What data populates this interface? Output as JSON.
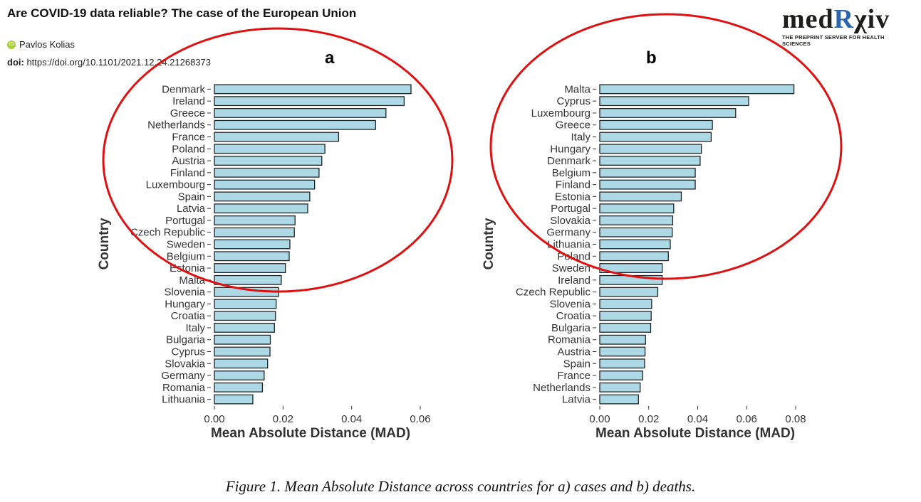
{
  "header": {
    "title": "Are COVID-19 data reliable? The case of the European Union",
    "author": "Pavlos Kolias",
    "doi_label": "doi:",
    "doi_url": "https://doi.org/10.1101/2021.12.24.21268373"
  },
  "logo": {
    "text_a": "med",
    "text_r": "R",
    "text_b": "χiv",
    "tagline": "THE PREPRINT SERVER FOR HEALTH SCIENCES"
  },
  "caption": "Figure 1. Mean Absolute Distance across countries for a) cases and b) deaths.",
  "colors": {
    "bar_fill": "#add8e6",
    "bar_stroke": "#222222",
    "ellipse": "#e01010"
  },
  "chart_data": [
    {
      "type": "bar",
      "orientation": "horizontal",
      "panel_label": "a",
      "xlabel": "Mean Absolute Distance (MAD)",
      "ylabel": "Country",
      "xlim": [
        0,
        0.06
      ],
      "xticks": [
        "0.00",
        "0.02",
        "0.04",
        "0.06"
      ],
      "categories": [
        "Denmark",
        "Ireland",
        "Greece",
        "Netherlands",
        "France",
        "Poland",
        "Austria",
        "Finland",
        "Luxembourg",
        "Spain",
        "Latvia",
        "Portugal",
        "Czech Republic",
        "Sweden",
        "Belgium",
        "Estonia",
        "Malta",
        "Slovenia",
        "Hungary",
        "Croatia",
        "Italy",
        "Bulgaria",
        "Cyprus",
        "Slovakia",
        "Germany",
        "Romania",
        "Lithuania"
      ],
      "values": [
        0.0573,
        0.0553,
        0.05,
        0.047,
        0.0362,
        0.0322,
        0.0313,
        0.0305,
        0.0292,
        0.0278,
        0.0272,
        0.0235,
        0.0233,
        0.022,
        0.0218,
        0.0207,
        0.0195,
        0.0187,
        0.018,
        0.0178,
        0.0175,
        0.0163,
        0.0162,
        0.0155,
        0.0145,
        0.014,
        0.0112
      ]
    },
    {
      "type": "bar",
      "orientation": "horizontal",
      "panel_label": "b",
      "xlabel": "Mean Absolute Distance (MAD)",
      "ylabel": "Country",
      "xlim": [
        0,
        0.08
      ],
      "xticks": [
        "0.00",
        "0.02",
        "0.04",
        "0.06",
        "0.08"
      ],
      "categories": [
        "Malta",
        "Cyprus",
        "Luxembourg",
        "Greece",
        "Italy",
        "Hungary",
        "Denmark",
        "Belgium",
        "Finland",
        "Estonia",
        "Portugal",
        "Slovakia",
        "Germany",
        "Lithuania",
        "Poland",
        "Sweden",
        "Ireland",
        "Czech Republic",
        "Slovenia",
        "Croatia",
        "Bulgaria",
        "Romania",
        "Austria",
        "Spain",
        "France",
        "Netherlands",
        "Latvia"
      ],
      "values": [
        0.0793,
        0.0608,
        0.0555,
        0.046,
        0.0455,
        0.0415,
        0.041,
        0.039,
        0.039,
        0.0333,
        0.0302,
        0.0298,
        0.0296,
        0.0288,
        0.028,
        0.0255,
        0.0255,
        0.0237,
        0.0212,
        0.021,
        0.0208,
        0.0187,
        0.0185,
        0.0183,
        0.0175,
        0.0165,
        0.0158
      ]
    }
  ]
}
